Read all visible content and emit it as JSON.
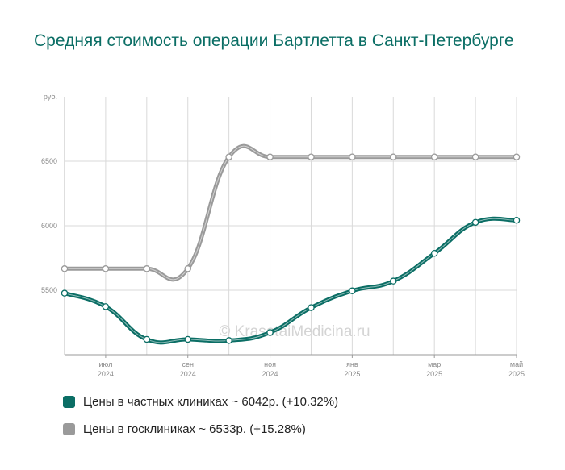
{
  "title": "Средняя стоимость операции Бартлетта в Санкт-Петербурге",
  "watermark": "© KrasotaiMedicina.ru",
  "colors": {
    "private": "#0b6e65",
    "public": "#9a9a9a",
    "title": "#0b6e65",
    "grid": "#d9d9d9",
    "axis_text": "#8a8a8a"
  },
  "legend": {
    "private_label": "Цены в частных клиниках ~ 6042р. (+10.32%)",
    "public_label": "Цены в госклиниках ~ 6533р. (+15.28%)"
  },
  "chart_data": {
    "type": "line",
    "ylabel": "руб.",
    "ylim": [
      5000,
      7000
    ],
    "y_ticks": [
      5500,
      6000,
      6500
    ],
    "x": [
      "2024-06",
      "2024-07",
      "2024-08",
      "2024-09",
      "2024-10",
      "2024-11",
      "2024-12",
      "2025-01",
      "2025-02",
      "2025-03",
      "2025-04",
      "2025-05"
    ],
    "x_tick_labels": [
      {
        "index": 1,
        "month": "июл",
        "year": "2024"
      },
      {
        "index": 3,
        "month": "сен",
        "year": "2024"
      },
      {
        "index": 5,
        "month": "ноя",
        "year": "2024"
      },
      {
        "index": 7,
        "month": "янв",
        "year": "2025"
      },
      {
        "index": 9,
        "month": "мар",
        "year": "2025"
      },
      {
        "index": 11,
        "month": "май",
        "year": "2025"
      }
    ],
    "grid": true,
    "legend_position": "bottom",
    "series": [
      {
        "key": "public",
        "name": "Цены в госклиниках ~ 6533р. (+15.28%)",
        "values": [
          5667,
          5667,
          5667,
          5667,
          6533,
          6533,
          6533,
          6533,
          6533,
          6533,
          6533,
          6533
        ]
      },
      {
        "key": "private",
        "name": "Цены в частных клиниках ~ 6042р. (+10.32%)",
        "values": [
          5477,
          5373,
          5119,
          5119,
          5110,
          5172,
          5365,
          5495,
          5571,
          5786,
          6026,
          6042
        ]
      }
    ]
  }
}
